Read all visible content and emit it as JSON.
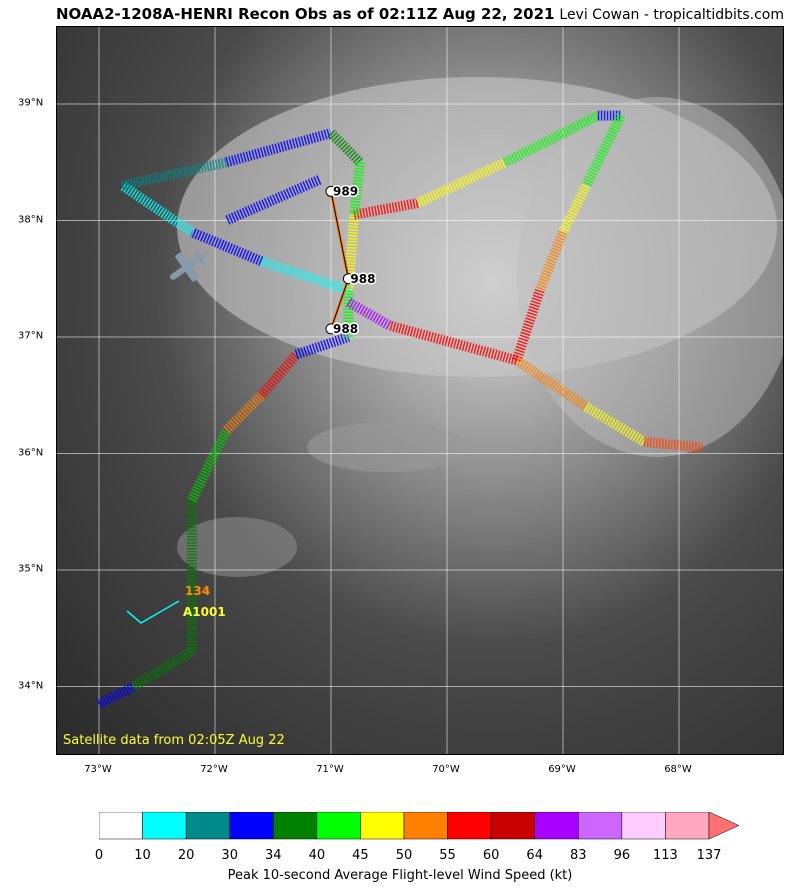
{
  "header": {
    "title": "NOAA2-1208A-HENRI Recon Obs as of 02:11Z Aug 22, 2021",
    "credit": "Levi Cowan - tropicaltidbits.com"
  },
  "map": {
    "satellite_note": "Satellite data from 02:05Z Aug 22",
    "lon_ticks": [
      "73°W",
      "72°W",
      "71°W",
      "70°W",
      "69°W",
      "68°W"
    ],
    "lat_ticks": [
      "39°N",
      "38°N",
      "37°N",
      "36°N",
      "35°N",
      "34°N"
    ],
    "pressure_obs": [
      {
        "label": "989",
        "lon": -71.0,
        "lat": 38.25
      },
      {
        "label": "988",
        "lon": -70.85,
        "lat": 37.5
      },
      {
        "label": "988",
        "lon": -71.0,
        "lat": 37.07
      }
    ],
    "last_obs": {
      "wind_label": "134",
      "pressure_label": "A1001",
      "wind_color": "#ff8c00",
      "pressure_color": "#ffff33"
    },
    "icons": [
      "aircraft-icon"
    ]
  },
  "colorbar": {
    "label": "Peak 10-second Average Flight-level Wind Speed (kt)",
    "ticks": [
      "0",
      "10",
      "20",
      "30",
      "34",
      "40",
      "45",
      "50",
      "55",
      "60",
      "64",
      "83",
      "96",
      "113",
      "137"
    ],
    "colors": [
      "#ffffff",
      "#00ffff",
      "#008b8b",
      "#0000ff",
      "#008000",
      "#00ff00",
      "#ffff00",
      "#ff8000",
      "#ff0000",
      "#c80000",
      "#aa00ff",
      "#cc66ff",
      "#ffccff",
      "#ffa8c0",
      "#ff7070"
    ]
  }
}
